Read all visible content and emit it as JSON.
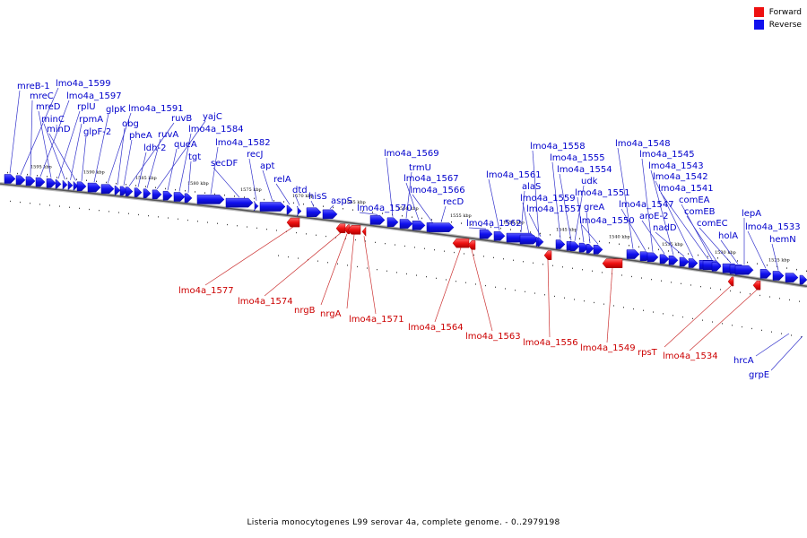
{
  "legend": {
    "forward_label": "Forward",
    "reverse_label": "Reverse",
    "forward_color": "#ee1111",
    "reverse_color": "#1111ee"
  },
  "caption": "Listeria monocytogenes L99 serovar 4a, complete genome. - 0..2979198",
  "colors": {
    "forward_label": "#cc0000",
    "reverse_label": "#0000cc",
    "backbone": "#888888"
  },
  "kbp_labels": [
    "1595 kbp",
    "1590 kbp",
    "1585 kbp",
    "1580 kbp",
    "1575 kbp",
    "1570 kbp",
    "1565 kbp",
    "1560 kbp",
    "1555 kbp",
    "1550 kbp",
    "1545 kbp",
    "1540 kbp",
    "1535 kbp",
    "1530 kbp",
    "1525 kbp"
  ],
  "reverse_genes": [
    "mreB-1",
    "lmo4a_1599",
    "mreC",
    "lmo4a_1597",
    "mreD",
    "rplU",
    "minC",
    "rpmA",
    "minD",
    "glpF-2",
    "glpK",
    "lmo4a_1591",
    "obg",
    "pheA",
    "ruvB",
    "ldh-2",
    "ruvA",
    "yajC",
    "queA",
    "lmo4a_1584",
    "tgt",
    "lmo4a_1582",
    "secDF",
    "recJ",
    "apt",
    "relA",
    "dtd",
    "hisS",
    "aspS",
    "lmo4a_1570",
    "lmo4a_1569",
    "trmU",
    "lmo4a_1567",
    "lmo4a_1566",
    "recD",
    "lmo4a_1562",
    "lmo4a_1561",
    "alaS",
    "lmo4a_1559",
    "lmo4a_1558",
    "lmo4a_1557",
    "lmo4a_1555",
    "lmo4a_1554",
    "udk",
    "lmo4a_1551",
    "greA",
    "lmo4a_1550",
    "lmo4a_1548",
    "lmo4a_1547",
    "lmo4a_1545",
    "aroE-2",
    "lmo4a_1543",
    "nadD",
    "lmo4a_1542",
    "lmo4a_1541",
    "comEA",
    "comEB",
    "comEC",
    "holA",
    "lepA",
    "lmo4a_1533",
    "hemN"
  ],
  "forward_genes": [
    "lmo4a_1577",
    "lmo4a_1574",
    "nrgB",
    "nrgA",
    "lmo4a_1571",
    "lmo4a_1564",
    "lmo4a_1563",
    "lmo4a_1556",
    "lmo4a_1549",
    "rpsT",
    "lmo4a_1534"
  ],
  "lower_reverse_genes": [
    "hrcA",
    "grpE"
  ]
}
